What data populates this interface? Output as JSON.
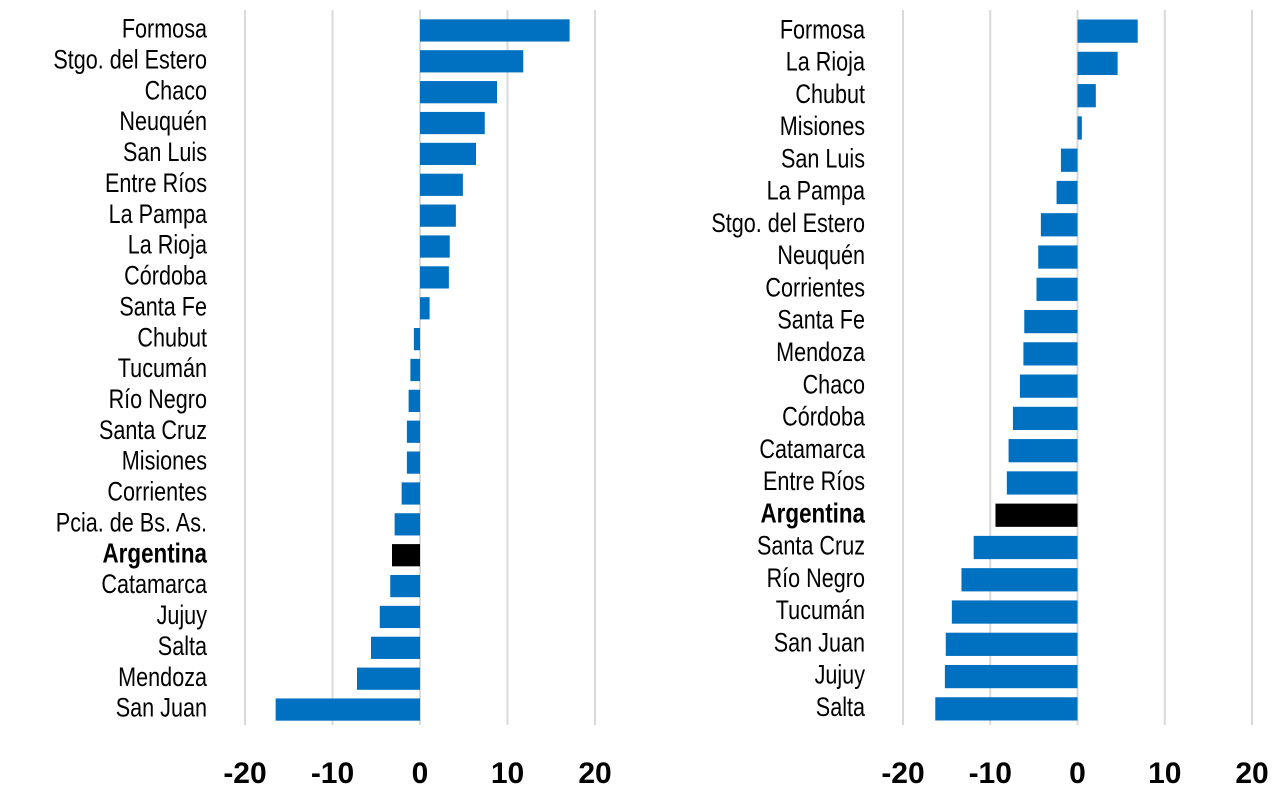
{
  "chart_data": [
    {
      "type": "barh",
      "categories": [
        "Formosa",
        "Stgo. del Estero",
        "Chaco",
        "Neuquén",
        "San Luis",
        "Entre Ríos",
        "La Pampa",
        "La Rioja",
        "Córdoba",
        "Santa Fe",
        "Chubut",
        "Tucumán",
        "Río Negro",
        "Santa Cruz",
        "Misiones",
        "Corrientes",
        "Pcia. de Bs. As.",
        "Argentina",
        "Catamarca",
        "Jujuy",
        "Salta",
        "Mendoza",
        "San Juan"
      ],
      "values": [
        17.1,
        11.8,
        8.8,
        7.4,
        6.4,
        4.9,
        4.1,
        3.4,
        3.3,
        1.1,
        -0.7,
        -1.1,
        -1.3,
        -1.5,
        -1.5,
        -2.1,
        -2.9,
        -3.2,
        -3.4,
        -4.6,
        -5.6,
        -7.2,
        -16.5
      ],
      "color": "#0070c0",
      "colors": [
        "#0070c0",
        "#0070c0",
        "#0070c0",
        "#0070c0",
        "#0070c0",
        "#0070c0",
        "#0070c0",
        "#0070c0",
        "#0070c0",
        "#0070c0",
        "#0070c0",
        "#0070c0",
        "#0070c0",
        "#0070c0",
        "#0070c0",
        "#0070c0",
        "#0070c0",
        "#000000",
        "#0070c0",
        "#0070c0",
        "#0070c0",
        "#0070c0",
        "#0070c0"
      ],
      "xlim": [
        -20,
        20
      ],
      "xticks": [
        -20,
        -10,
        0,
        10,
        20
      ],
      "grid": true
    },
    {
      "type": "barh",
      "categories": [
        "Formosa",
        "La Rioja",
        "Chubut",
        "Misiones",
        "San Luis",
        "La Pampa",
        "Stgo. del Estero",
        "Neuquén",
        "Corrientes",
        "Santa Fe",
        "Mendoza",
        "Chaco",
        "Córdoba",
        "Catamarca",
        "Entre Ríos",
        "Argentina",
        "Santa Cruz",
        "Río Negro",
        "Tucumán",
        "San Juan",
        "Jujuy",
        "Salta"
      ],
      "values": [
        6.9,
        4.6,
        2.1,
        0.5,
        -1.9,
        -2.4,
        -4.2,
        -4.5,
        -4.7,
        -6.1,
        -6.2,
        -6.6,
        -7.4,
        -7.9,
        -8.1,
        -9.4,
        -11.9,
        -13.3,
        -14.4,
        -15.1,
        -15.2,
        -16.3
      ],
      "color": "#0070c0",
      "colors": [
        "#0070c0",
        "#0070c0",
        "#0070c0",
        "#0070c0",
        "#0070c0",
        "#0070c0",
        "#0070c0",
        "#0070c0",
        "#0070c0",
        "#0070c0",
        "#0070c0",
        "#0070c0",
        "#0070c0",
        "#0070c0",
        "#0070c0",
        "#000000",
        "#0070c0",
        "#0070c0",
        "#0070c0",
        "#0070c0",
        "#0070c0",
        "#0070c0"
      ],
      "xlim": [
        -20,
        20
      ],
      "xticks": [
        -20,
        -10,
        0,
        10,
        20
      ],
      "grid": true
    }
  ]
}
